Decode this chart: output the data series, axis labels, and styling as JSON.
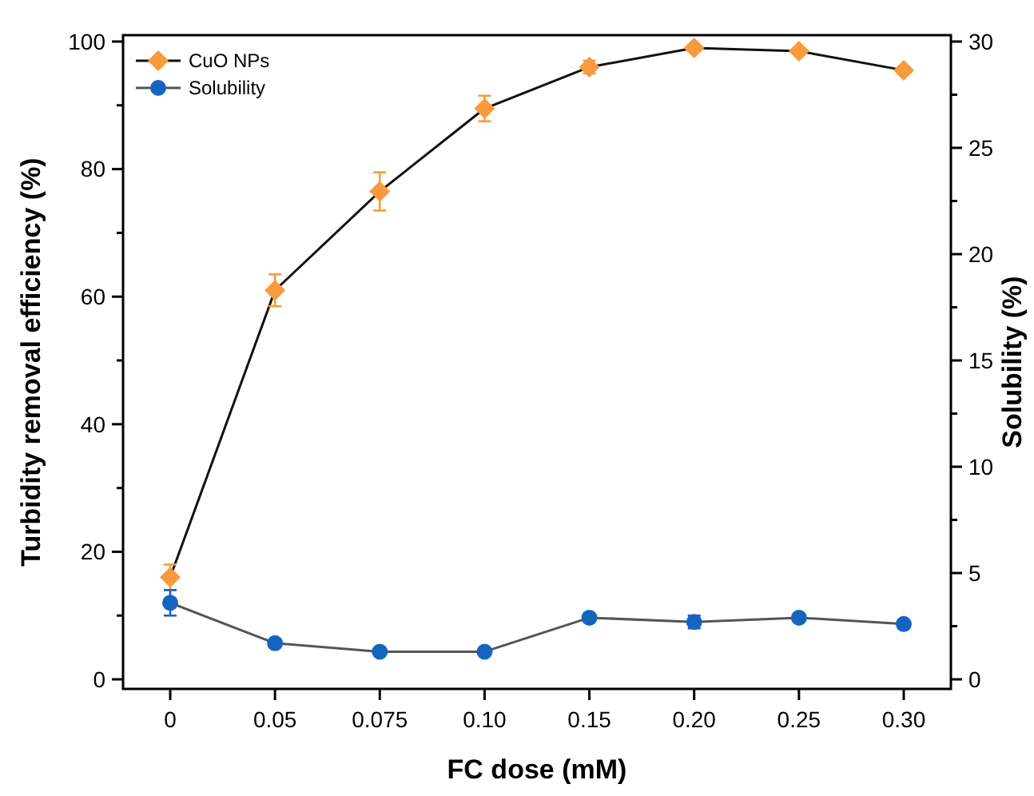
{
  "chart_data": {
    "type": "line",
    "xlabel": "FC dose (mM)",
    "ylabel": "Turbidity removal efficiency (%)",
    "y2label": "Solubility (%)",
    "categories": [
      "0",
      "0.05",
      "0.075",
      "0.10",
      "0.15",
      "0.20",
      "0.25",
      "0.30"
    ],
    "series": [
      {
        "name": "CuO NPs",
        "color": "#f99a3c",
        "marker": "diamond",
        "values": [
          16,
          61,
          76.5,
          89.5,
          96,
          99,
          98.5,
          95.5
        ],
        "errors": [
          2,
          2.5,
          3,
          2,
          1,
          0.5,
          0.5,
          0.5
        ]
      },
      {
        "name": "Solubility",
        "color": "#1565c0",
        "marker": "circle",
        "axis": "y2",
        "values": [
          3.6,
          1.7,
          1.3,
          1.3,
          2.9,
          2.7,
          2.9,
          2.6
        ],
        "errors": [
          0.6,
          0.15,
          0.15,
          0.1,
          0.15,
          0.3,
          0.15,
          0.1
        ]
      }
    ],
    "ylim": [
      -1.5,
      101
    ],
    "yticks": [
      0,
      {
        "value": 10,
        "label": null
      },
      20,
      {
        "value": 30,
        "label": null
      },
      40,
      {
        "value": 50,
        "label": null
      },
      60,
      {
        "value": 70,
        "label": null
      },
      80,
      {
        "value": 90,
        "label": null
      },
      100
    ],
    "y2lim": [
      -0.45,
      30.3
    ],
    "y2ticks": [
      0,
      {
        "value": 2.5,
        "label": null
      },
      5,
      {
        "value": 7.5,
        "label": null
      },
      10,
      {
        "value": 12.5,
        "label": null
      },
      15,
      {
        "value": 17.5,
        "label": null
      },
      20,
      {
        "value": 22.5,
        "label": null
      },
      25,
      {
        "value": 27.5,
        "label": null
      },
      30
    ],
    "legend": "top left",
    "grid": false,
    "line_style": "solid"
  }
}
